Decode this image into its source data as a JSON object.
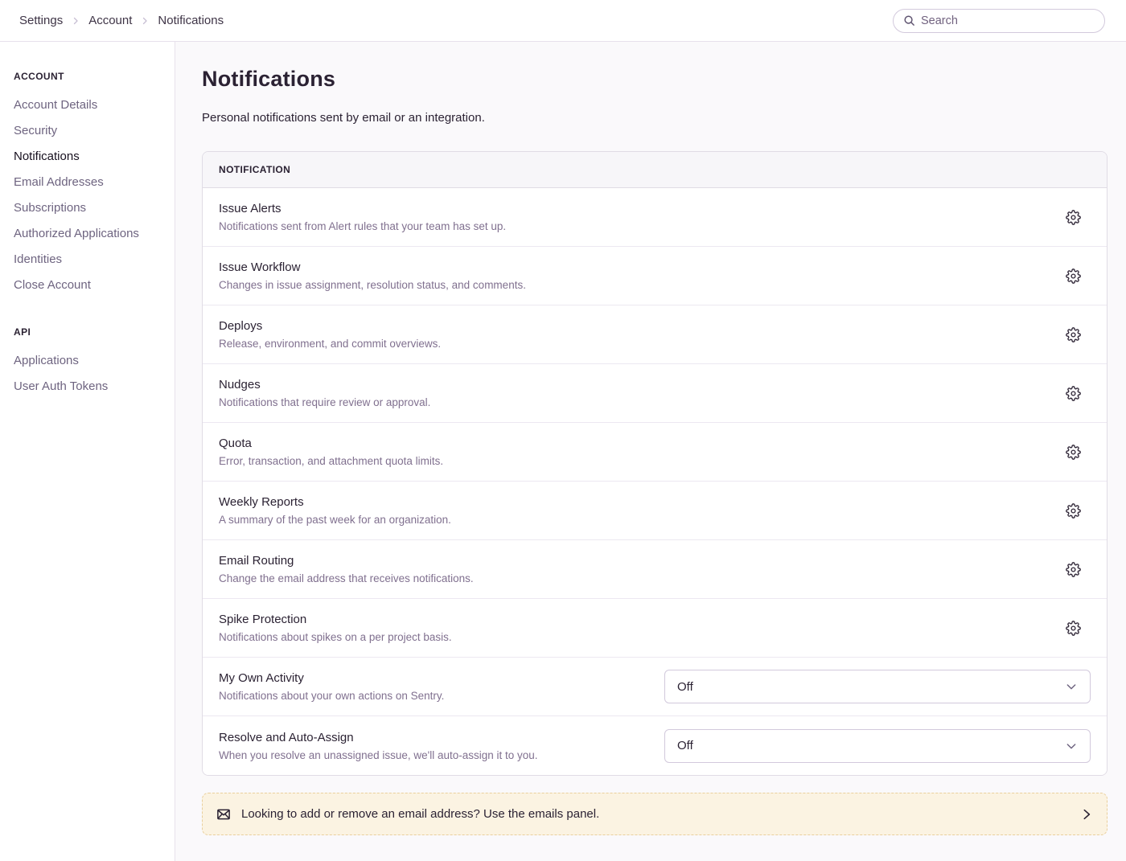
{
  "topbar": {
    "breadcrumbs": [
      {
        "label": "Settings"
      },
      {
        "label": "Account"
      },
      {
        "label": "Notifications"
      }
    ],
    "search": {
      "placeholder": "Search"
    }
  },
  "sidebar": {
    "sections": [
      {
        "title": "ACCOUNT",
        "items": [
          {
            "label": "Account Details",
            "active": false
          },
          {
            "label": "Security",
            "active": false
          },
          {
            "label": "Notifications",
            "active": true
          },
          {
            "label": "Email Addresses",
            "active": false
          },
          {
            "label": "Subscriptions",
            "active": false
          },
          {
            "label": "Authorized Applications",
            "active": false
          },
          {
            "label": "Identities",
            "active": false
          },
          {
            "label": "Close Account",
            "active": false
          }
        ]
      },
      {
        "title": "API",
        "items": [
          {
            "label": "Applications",
            "active": false
          },
          {
            "label": "User Auth Tokens",
            "active": false
          }
        ]
      }
    ]
  },
  "main": {
    "title": "Notifications",
    "subtitle": "Personal notifications sent by email or an integration.",
    "panel": {
      "header": "NOTIFICATION",
      "rows": [
        {
          "slug": "issue-alerts",
          "title": "Issue Alerts",
          "description": "Notifications sent from Alert rules that your team has set up.",
          "control": "gear"
        },
        {
          "slug": "issue-workflow",
          "title": "Issue Workflow",
          "description": "Changes in issue assignment, resolution status, and comments.",
          "control": "gear"
        },
        {
          "slug": "deploys",
          "title": "Deploys",
          "description": "Release, environment, and commit overviews.",
          "control": "gear"
        },
        {
          "slug": "nudges",
          "title": "Nudges",
          "description": "Notifications that require review or approval.",
          "control": "gear"
        },
        {
          "slug": "quota",
          "title": "Quota",
          "description": "Error, transaction, and attachment quota limits.",
          "control": "gear"
        },
        {
          "slug": "weekly-reports",
          "title": "Weekly Reports",
          "description": "A summary of the past week for an organization.",
          "control": "gear"
        },
        {
          "slug": "email-routing",
          "title": "Email Routing",
          "description": "Change the email address that receives notifications.",
          "control": "gear"
        },
        {
          "slug": "spike-protection",
          "title": "Spike Protection",
          "description": "Notifications about spikes on a per project basis.",
          "control": "gear"
        },
        {
          "slug": "my-own-activity",
          "title": "My Own Activity",
          "description": "Notifications about your own actions on Sentry.",
          "control": "select",
          "value": "Off"
        },
        {
          "slug": "resolve-auto-assign",
          "title": "Resolve and Auto-Assign",
          "description": "When you resolve an unassigned issue, we'll auto-assign it to you.",
          "control": "select",
          "value": "Off"
        }
      ]
    },
    "banner": {
      "text": "Looking to add or remove an email address? Use the emails panel."
    }
  },
  "colors": {
    "heading_text": "#2b2233",
    "muted_text": "#80708f",
    "border": "#e0dce5",
    "panel_header_bg": "#f7f6f9",
    "content_bg": "#faf9fb",
    "banner_bg": "#fbf3e2",
    "banner_border": "#e9cf9c"
  }
}
